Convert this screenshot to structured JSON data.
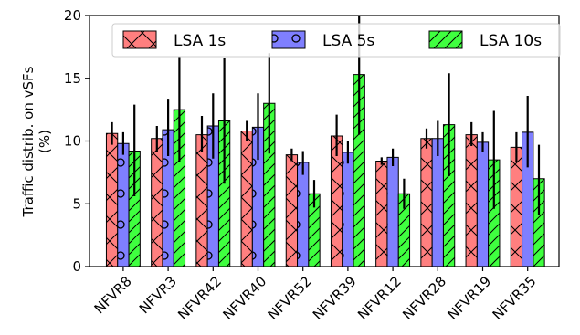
{
  "chart_data": {
    "type": "bar",
    "title": "",
    "xlabel": "",
    "ylabel": "Traffic distrib. on vSFs (%)",
    "ylabel_lines": [
      "Traffic distrib. on vSFs",
      "(%)"
    ],
    "ylim": [
      0,
      20
    ],
    "yticks": [
      0,
      5,
      10,
      15,
      20
    ],
    "grid": false,
    "legend_position": "top",
    "categories": [
      "NFVR8",
      "NFVR3",
      "NFVR42",
      "NFVR40",
      "NFVR52",
      "NFVR39",
      "NFVR12",
      "NFVR28",
      "NFVR19",
      "NFVR35"
    ],
    "series": [
      {
        "name": "LSA 1s",
        "color": "#ff7f7f",
        "hatch": "x",
        "values": [
          10.6,
          10.2,
          10.5,
          10.8,
          8.9,
          10.4,
          8.4,
          10.2,
          10.5,
          9.5
        ],
        "error_low": [
          9.7,
          9.1,
          9.1,
          10.0,
          8.4,
          8.8,
          8.1,
          9.4,
          9.6,
          8.3
        ],
        "error_high": [
          11.5,
          11.2,
          12.0,
          11.6,
          9.4,
          12.1,
          8.7,
          11.0,
          11.5,
          10.7
        ]
      },
      {
        "name": "LSA 5s",
        "color": "#7f7fff",
        "hatch": "o",
        "values": [
          9.8,
          10.9,
          11.2,
          11.1,
          8.3,
          9.1,
          8.7,
          10.2,
          9.9,
          10.7
        ],
        "error_low": [
          8.9,
          8.8,
          8.6,
          8.5,
          7.3,
          8.2,
          8.0,
          8.8,
          9.1,
          7.9
        ],
        "error_high": [
          10.7,
          13.3,
          13.8,
          13.8,
          9.2,
          10.0,
          9.4,
          11.6,
          10.7,
          13.6
        ]
      },
      {
        "name": "LSA 10s",
        "color": "#3fff3f",
        "hatch": "/",
        "values": [
          9.2,
          12.5,
          11.6,
          13.0,
          5.8,
          15.3,
          5.8,
          11.3,
          8.5,
          7.0
        ],
        "error_low": [
          5.6,
          8.3,
          6.6,
          9.0,
          4.7,
          10.5,
          4.6,
          7.2,
          4.6,
          4.1
        ],
        "error_high": [
          12.9,
          16.7,
          16.6,
          17.0,
          6.9,
          20.0,
          7.0,
          15.4,
          12.4,
          9.7
        ]
      }
    ]
  }
}
